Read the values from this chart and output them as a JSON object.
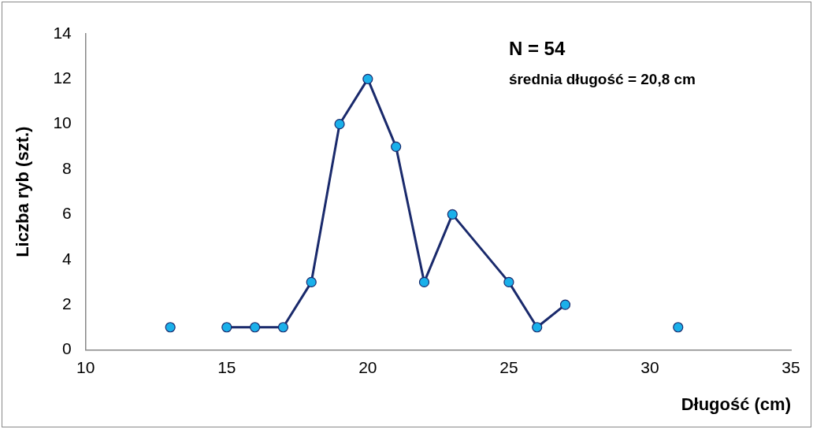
{
  "chart_data": {
    "type": "line",
    "xlabel": "Długość (cm)",
    "ylabel": "Liczba ryb (szt.)",
    "annotations": [
      "N = 54",
      "średnia długość = 20,8 cm"
    ],
    "x": [
      13,
      14,
      15,
      16,
      17,
      18,
      19,
      20,
      21,
      22,
      23,
      25,
      26,
      27,
      28,
      29,
      30,
      31
    ],
    "series": [
      {
        "color": "#1a2a6c",
        "values": [
          1,
          null,
          1,
          1,
          1,
          3,
          10,
          12,
          9,
          3,
          6,
          3,
          1,
          2,
          null,
          null,
          null,
          1
        ]
      }
    ],
    "xlim": [
      10,
      35
    ],
    "xticks": [
      10,
      15,
      20,
      25,
      30,
      35
    ],
    "ylim": [
      0,
      14
    ],
    "yticks": [
      0,
      2,
      4,
      6,
      8,
      10,
      12,
      14
    ],
    "grid": false,
    "legend": false,
    "marker": "circle",
    "line_style": "solid"
  }
}
